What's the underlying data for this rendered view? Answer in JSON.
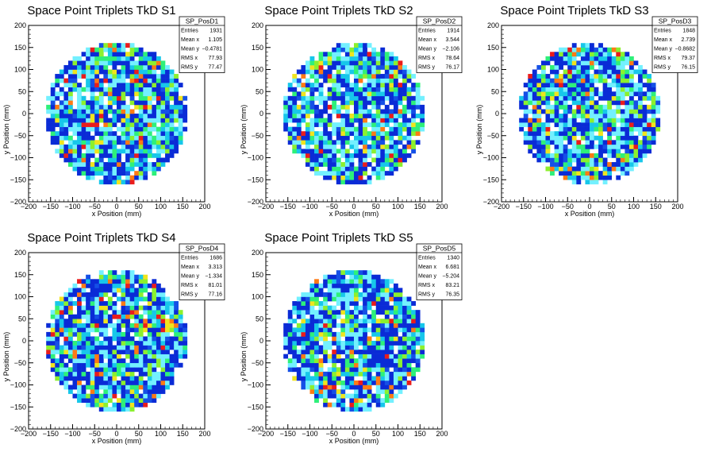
{
  "chart_data": [
    {
      "type": "heatmap",
      "title": "Space Point Triplets TkD S1",
      "xlabel": "x Position (mm)",
      "ylabel": "y Position (mm)",
      "xlim": [
        -200,
        200
      ],
      "ylim": [
        -200,
        200
      ],
      "x_ticks": [
        "−200",
        "−150",
        "−100",
        "−50",
        "0",
        "50",
        "100",
        "150",
        "200"
      ],
      "y_ticks": [
        "200",
        "150",
        "100",
        "50",
        "0",
        "−50",
        "−100",
        "−150",
        "−200"
      ],
      "bin_size": 10,
      "radius": 160,
      "seed": 11,
      "stats": {
        "name": "SP_PosD1",
        "rows": [
          {
            "label": "Entries",
            "value": "1931"
          },
          {
            "label": "Mean x",
            "value": "1.105"
          },
          {
            "label": "Mean y",
            "value": "−0.4781"
          },
          {
            "label": "RMS x",
            "value": "77.93"
          },
          {
            "label": "RMS y",
            "value": "77.47"
          }
        ]
      }
    },
    {
      "type": "heatmap",
      "title": "Space Point Triplets TkD S2",
      "xlabel": "x Position (mm)",
      "ylabel": "y Position (mm)",
      "xlim": [
        -200,
        200
      ],
      "ylim": [
        -200,
        200
      ],
      "x_ticks": [
        "−200",
        "−150",
        "−100",
        "−50",
        "0",
        "50",
        "100",
        "150",
        "200"
      ],
      "y_ticks": [
        "200",
        "150",
        "100",
        "50",
        "0",
        "−50",
        "−100",
        "−150",
        "−200"
      ],
      "bin_size": 10,
      "radius": 160,
      "seed": 23,
      "stats": {
        "name": "SP_PosD2",
        "rows": [
          {
            "label": "Entries",
            "value": "1914"
          },
          {
            "label": "Mean x",
            "value": "3.544"
          },
          {
            "label": "Mean y",
            "value": "−2.106"
          },
          {
            "label": "RMS x",
            "value": "78.64"
          },
          {
            "label": "RMS y",
            "value": "76.17"
          }
        ]
      }
    },
    {
      "type": "heatmap",
      "title": "Space Point Triplets TkD S3",
      "xlabel": "x Position (mm)",
      "ylabel": "y Position (mm)",
      "xlim": [
        -200,
        200
      ],
      "ylim": [
        -200,
        200
      ],
      "x_ticks": [
        "−200",
        "−150",
        "−100",
        "−50",
        "0",
        "50",
        "100",
        "150",
        "200"
      ],
      "y_ticks": [
        "200",
        "150",
        "100",
        "50",
        "0",
        "−50",
        "−100",
        "−150",
        "−200"
      ],
      "bin_size": 10,
      "radius": 160,
      "seed": 37,
      "stats": {
        "name": "SP_PosD3",
        "rows": [
          {
            "label": "Entries",
            "value": "1848"
          },
          {
            "label": "Mean x",
            "value": "2.739"
          },
          {
            "label": "Mean y",
            "value": "−0.8682"
          },
          {
            "label": "RMS x",
            "value": "79.37"
          },
          {
            "label": "RMS y",
            "value": "76.15"
          }
        ]
      }
    },
    {
      "type": "heatmap",
      "title": "Space Point Triplets TkD S4",
      "xlabel": "x Position (mm)",
      "ylabel": "y Position (mm)",
      "xlim": [
        -200,
        200
      ],
      "ylim": [
        -200,
        200
      ],
      "x_ticks": [
        "−200",
        "−150",
        "−100",
        "−50",
        "0",
        "50",
        "100",
        "150",
        "200"
      ],
      "y_ticks": [
        "200",
        "150",
        "100",
        "50",
        "0",
        "−50",
        "−100",
        "−150",
        "−200"
      ],
      "bin_size": 10,
      "radius": 160,
      "seed": 41,
      "stats": {
        "name": "SP_PosD4",
        "rows": [
          {
            "label": "Entries",
            "value": "1686"
          },
          {
            "label": "Mean x",
            "value": "3.313"
          },
          {
            "label": "Mean y",
            "value": "−1.334"
          },
          {
            "label": "RMS x",
            "value": "81.01"
          },
          {
            "label": "RMS y",
            "value": "77.16"
          }
        ]
      }
    },
    {
      "type": "heatmap",
      "title": "Space Point Triplets TkD S5",
      "xlabel": "x Position (mm)",
      "ylabel": "y Position (mm)",
      "xlim": [
        -200,
        200
      ],
      "ylim": [
        -200,
        200
      ],
      "x_ticks": [
        "−200",
        "−150",
        "−100",
        "−50",
        "0",
        "50",
        "100",
        "150",
        "200"
      ],
      "y_ticks": [
        "200",
        "150",
        "100",
        "50",
        "0",
        "−50",
        "−100",
        "−150",
        "−200"
      ],
      "bin_size": 10,
      "radius": 160,
      "seed": 53,
      "stats": {
        "name": "SP_PosD5",
        "rows": [
          {
            "label": "Entries",
            "value": "1340"
          },
          {
            "label": "Mean x",
            "value": "6.681"
          },
          {
            "label": "Mean y",
            "value": "−5.204"
          },
          {
            "label": "RMS x",
            "value": "83.21"
          },
          {
            "label": "RMS y",
            "value": "76.35"
          }
        ]
      }
    }
  ],
  "palette": [
    "#ffffff",
    "#0a2bd6",
    "#1550e6",
    "#17c7ea",
    "#73f0ff",
    "#2ef07a",
    "#8cf02e",
    "#f0e41e",
    "#ff7a14",
    "#ea1c1c"
  ],
  "palette_weights": [
    10,
    32,
    6,
    12,
    18,
    8,
    6,
    3,
    3,
    2
  ]
}
